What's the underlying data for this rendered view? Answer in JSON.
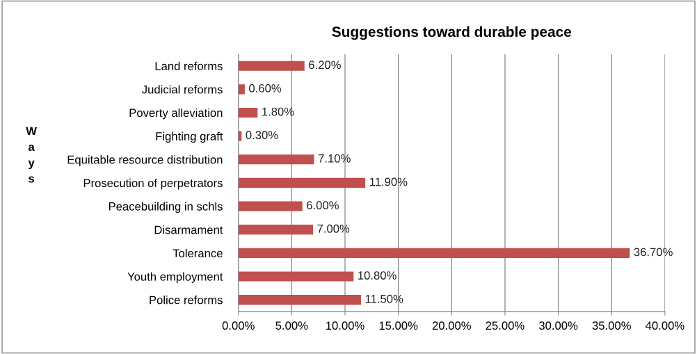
{
  "chart_data": {
    "type": "bar",
    "orientation": "horizontal",
    "title": "Suggestions toward durable peace",
    "ylabel": "Ways",
    "categories": [
      "Land reforms",
      "Judicial reforms",
      "Poverty alleviation",
      "Fighting graft",
      "Equitable resource distribution",
      "Prosecution of perpetrators",
      "Peacebuilding in schls",
      "Disarmament",
      "Tolerance",
      "Youth employment",
      "Police reforms"
    ],
    "values": [
      6.2,
      0.6,
      1.8,
      0.3,
      7.1,
      11.9,
      6.0,
      7.0,
      36.7,
      10.8,
      11.5
    ],
    "value_labels": [
      "6.20%",
      "0.60%",
      "1.80%",
      "0.30%",
      "7.10%",
      "11.90%",
      "6.00%",
      "7.00%",
      "36.70%",
      "10.80%",
      "11.50%"
    ],
    "color": "#c0504d",
    "xlim": [
      0,
      40
    ],
    "xticks": [
      {
        "value": 0,
        "label": "0.00%"
      },
      {
        "value": 5,
        "label": "5.00%"
      },
      {
        "value": 10,
        "label": "10.00%"
      },
      {
        "value": 15,
        "label": "15.00%"
      },
      {
        "value": 20,
        "label": "20.00%"
      },
      {
        "value": 25,
        "label": "25.00%"
      },
      {
        "value": 30,
        "label": "30.00%"
      },
      {
        "value": 35,
        "label": "35.00%"
      },
      {
        "value": 40,
        "label": "40.00%"
      }
    ],
    "grid": "x",
    "legend": false
  }
}
